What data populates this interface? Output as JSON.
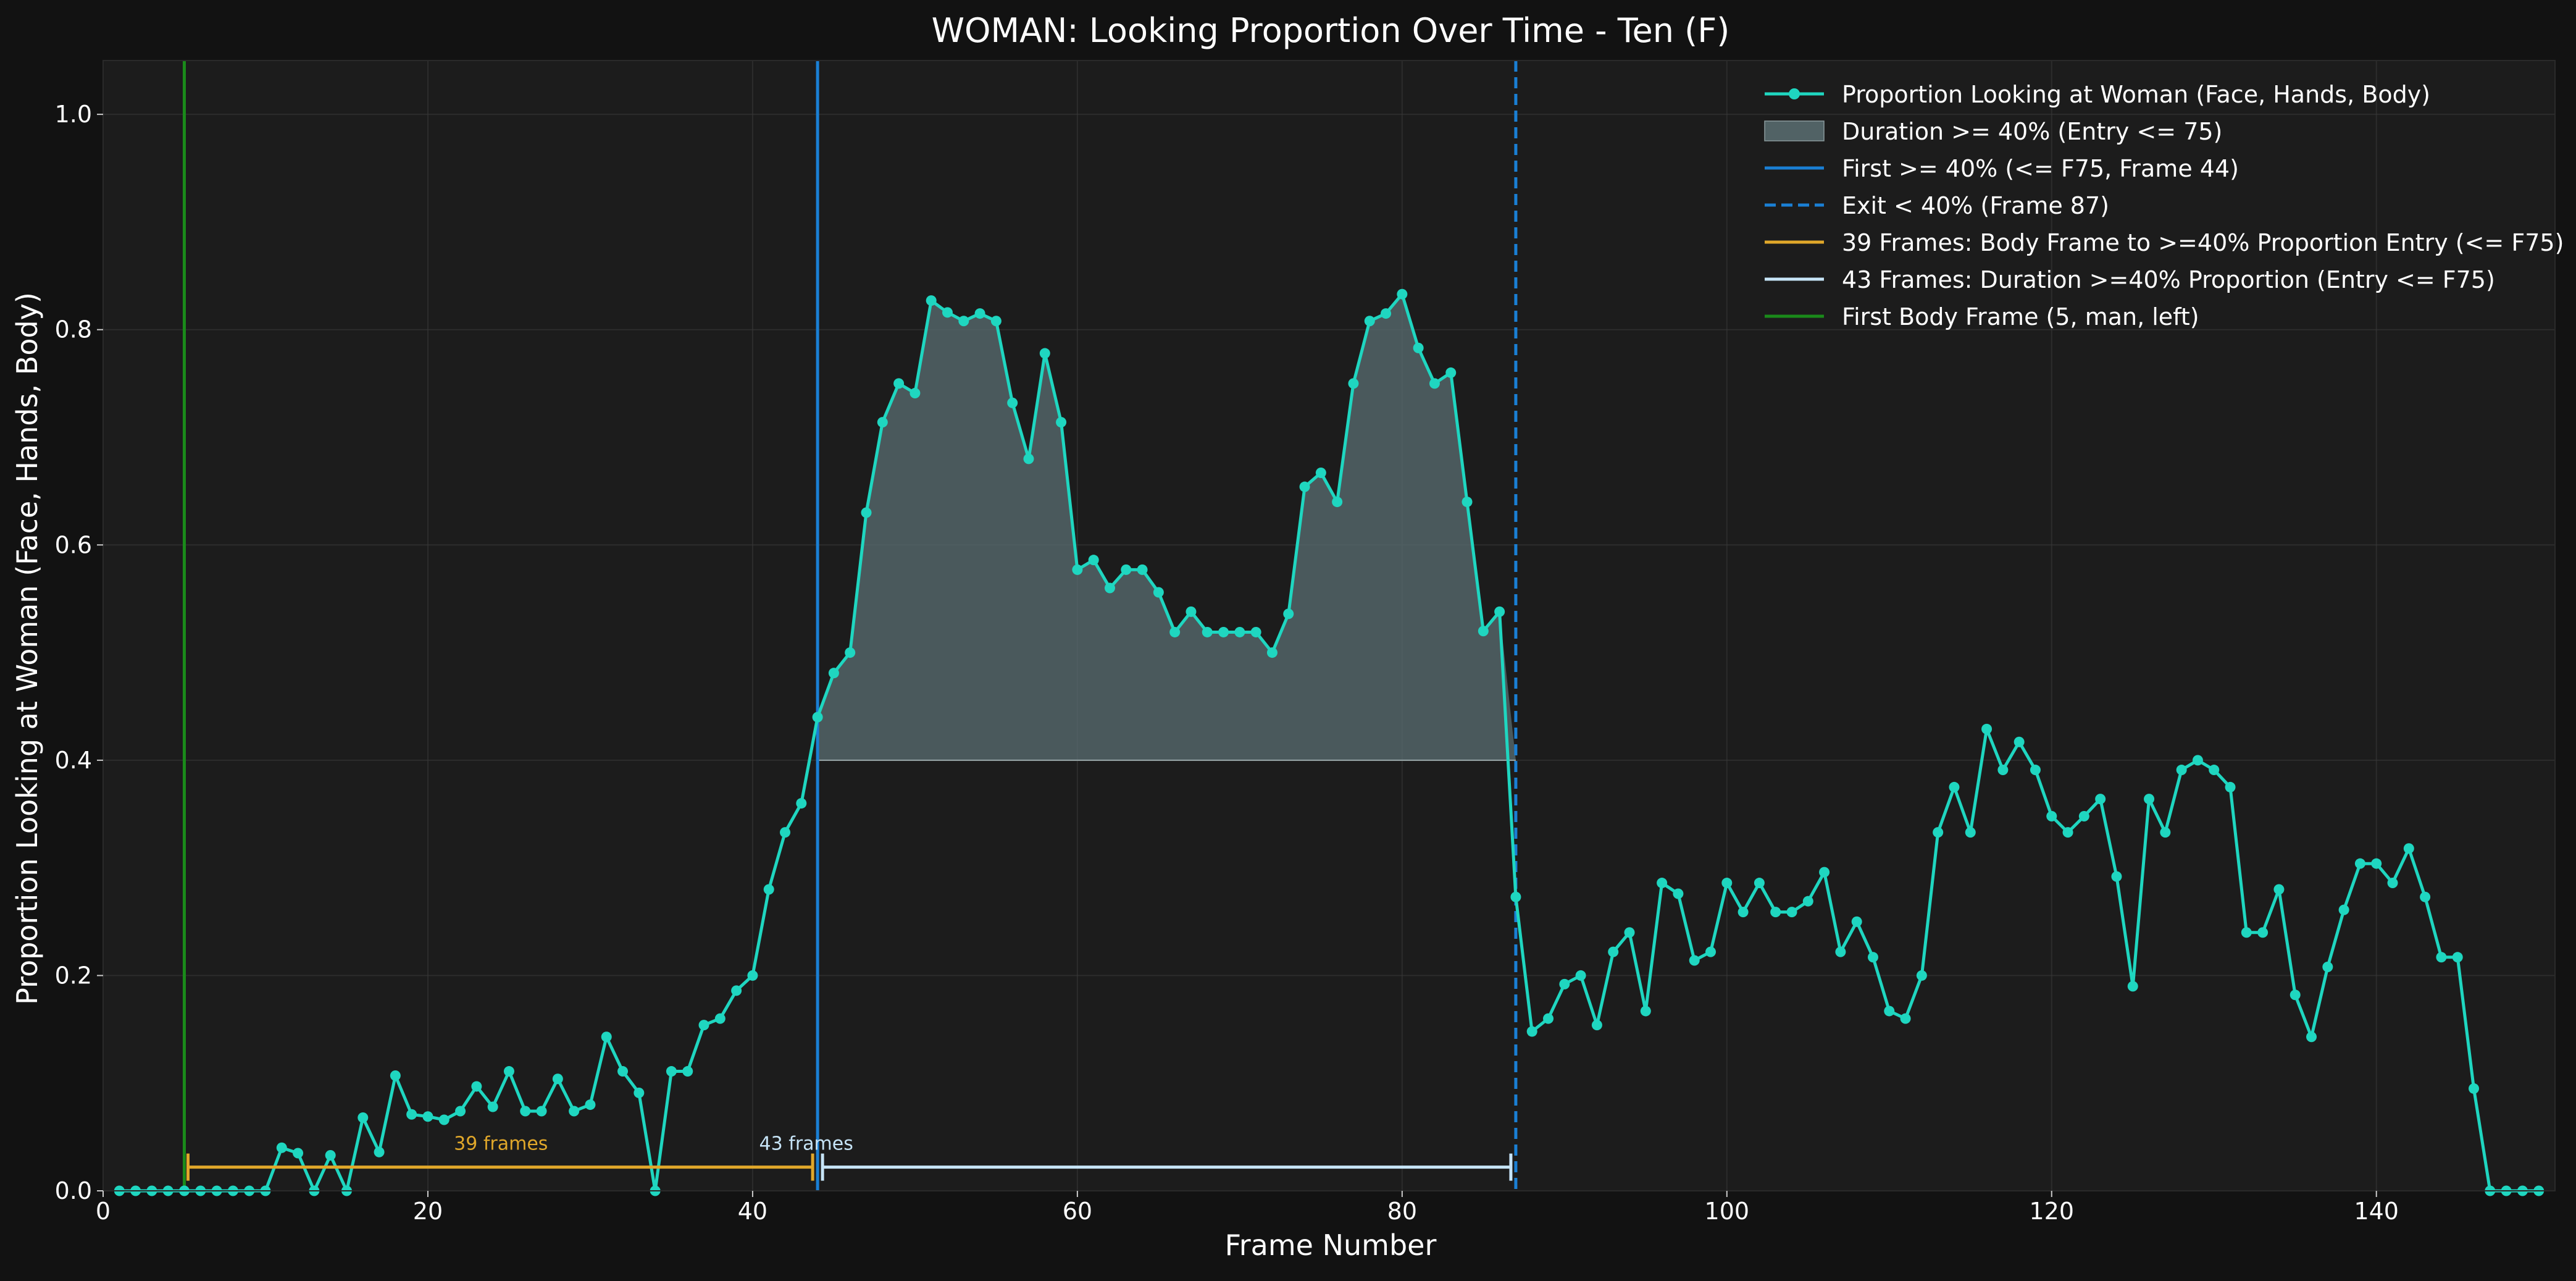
{
  "chart_data": {
    "type": "line",
    "title": "WOMAN: Looking Proportion Over Time - Ten (F)",
    "xlabel": "Frame Number",
    "ylabel": "Proportion Looking at Woman (Face, Hands, Body)",
    "xlim": [
      0,
      151
    ],
    "ylim": [
      0,
      1.05
    ],
    "x_ticks": [
      0,
      20,
      40,
      60,
      80,
      100,
      120,
      140
    ],
    "y_ticks": [
      0.0,
      0.2,
      0.4,
      0.6,
      0.8,
      1.0
    ],
    "grid": true,
    "legend_position": "top-right",
    "threshold": 0.4,
    "series": [
      {
        "name": "Proportion Looking at Woman (Face, Hands, Body)",
        "color": "#1fd6c0",
        "x": [
          1,
          2,
          3,
          4,
          5,
          6,
          7,
          8,
          9,
          10,
          11,
          12,
          13,
          14,
          15,
          16,
          17,
          18,
          19,
          20,
          21,
          22,
          23,
          24,
          25,
          26,
          27,
          28,
          29,
          30,
          31,
          32,
          33,
          34,
          35,
          36,
          37,
          38,
          39,
          40,
          41,
          42,
          43,
          44,
          45,
          46,
          47,
          48,
          49,
          50,
          51,
          52,
          53,
          54,
          55,
          56,
          57,
          58,
          59,
          60,
          61,
          62,
          63,
          64,
          65,
          66,
          67,
          68,
          69,
          70,
          71,
          72,
          73,
          74,
          75,
          76,
          77,
          78,
          79,
          80,
          81,
          82,
          83,
          84,
          85,
          86,
          87,
          88,
          89,
          90,
          91,
          92,
          93,
          94,
          95,
          96,
          97,
          98,
          99,
          100,
          101,
          102,
          103,
          104,
          105,
          106,
          107,
          108,
          109,
          110,
          111,
          112,
          113,
          114,
          115,
          116,
          117,
          118,
          119,
          120,
          121,
          122,
          123,
          124,
          125,
          126,
          127,
          128,
          129,
          130,
          131,
          132,
          133,
          134,
          135,
          136,
          137,
          138,
          139,
          140,
          141,
          142,
          143,
          144,
          145,
          146,
          147,
          148,
          149,
          150
        ],
        "y": [
          0,
          0,
          0,
          0,
          0,
          0,
          0,
          0,
          0,
          0,
          0.04,
          0.035,
          0,
          0.033,
          0,
          0.068,
          0.036,
          0.107,
          0.071,
          0.069,
          0.066,
          0.074,
          0.097,
          0.078,
          0.111,
          0.074,
          0.074,
          0.104,
          0.074,
          0.08,
          0.143,
          0.111,
          0.091,
          0,
          0.111,
          0.111,
          0.154,
          0.16,
          0.186,
          0.2,
          0.28,
          0.333,
          0.36,
          0.44,
          0.481,
          0.5,
          0.63,
          0.714,
          0.75,
          0.741,
          0.827,
          0.816,
          0.808,
          0.815,
          0.808,
          0.732,
          0.68,
          0.778,
          0.714,
          0.577,
          0.586,
          0.56,
          0.577,
          0.577,
          0.556,
          0.519,
          0.538,
          0.519,
          0.519,
          0.519,
          0.519,
          0.5,
          0.536,
          0.654,
          0.667,
          0.64,
          0.75,
          0.808,
          0.815,
          0.833,
          0.783,
          0.75,
          0.76,
          0.64,
          0.52,
          0.538,
          0.273,
          0.148,
          0.16,
          0.192,
          0.2,
          0.154,
          0.222,
          0.24,
          0.167,
          0.286,
          0.276,
          0.214,
          0.222,
          0.286,
          0.259,
          0.286,
          0.259,
          0.259,
          0.269,
          0.296,
          0.222,
          0.25,
          0.217,
          0.167,
          0.16,
          0.2,
          0.333,
          0.375,
          0.333,
          0.429,
          0.391,
          0.417,
          0.391,
          0.348,
          0.333,
          0.348,
          0.364,
          0.292,
          0.19,
          0.364,
          0.333,
          0.391,
          0.4,
          0.391,
          0.375,
          0.24,
          0.24,
          0.28,
          0.182,
          0.143,
          0.208,
          0.261,
          0.304,
          0.304,
          0.286,
          0.318,
          0.273,
          0.217,
          0.217,
          0.095,
          0,
          0,
          0,
          0
        ]
      }
    ],
    "shaded_region": {
      "name": "Duration >= 40% (Entry <= 75)",
      "x_start": 44,
      "x_end": 87,
      "baseline": 0.4,
      "color": "#5a6e72"
    },
    "vertical_lines": [
      {
        "name": "First >= 40% (<= F75, Frame 44)",
        "x": 44,
        "color": "#1a7fd4",
        "style": "solid"
      },
      {
        "name": "Exit < 40% (Frame 87)",
        "x": 87,
        "color": "#1a7fd4",
        "style": "dashed"
      },
      {
        "name": "First Body Frame (5, man, left)",
        "x": 5,
        "color": "#1a8a1a",
        "style": "solid"
      }
    ],
    "brackets": [
      {
        "name": "39 Frames: Body Frame to >=40% Proportion Entry (<= F75)",
        "x_start": 5,
        "x_end": 44,
        "y": 0.022,
        "label": "39 frames",
        "color": "#e0a72a"
      },
      {
        "name": "43 Frames: Duration >=40% Proportion (Entry <= F75)",
        "x_start": 44,
        "x_end": 87,
        "y": 0.022,
        "label": "43 frames",
        "color": "#c6e4f7"
      }
    ],
    "legend": [
      {
        "label": "Proportion Looking at Woman (Face, Hands, Body)",
        "kind": "line-marker",
        "color": "#1fd6c0"
      },
      {
        "label": "Duration >= 40% (Entry <= 75)",
        "kind": "patch",
        "color": "#5a6e72"
      },
      {
        "label": "First >= 40% (<= F75, Frame 44)",
        "kind": "line",
        "color": "#1a7fd4"
      },
      {
        "label": "Exit < 40% (Frame 87)",
        "kind": "dashed",
        "color": "#1a7fd4"
      },
      {
        "label": "39 Frames: Body Frame to >=40% Proportion Entry (<= F75)",
        "kind": "line",
        "color": "#e0a72a"
      },
      {
        "label": "43 Frames: Duration >=40% Proportion (Entry <= F75)",
        "kind": "line",
        "color": "#c6e4f7"
      },
      {
        "label": "First Body Frame (5, man, left)",
        "kind": "line",
        "color": "#1a8a1a"
      }
    ]
  }
}
